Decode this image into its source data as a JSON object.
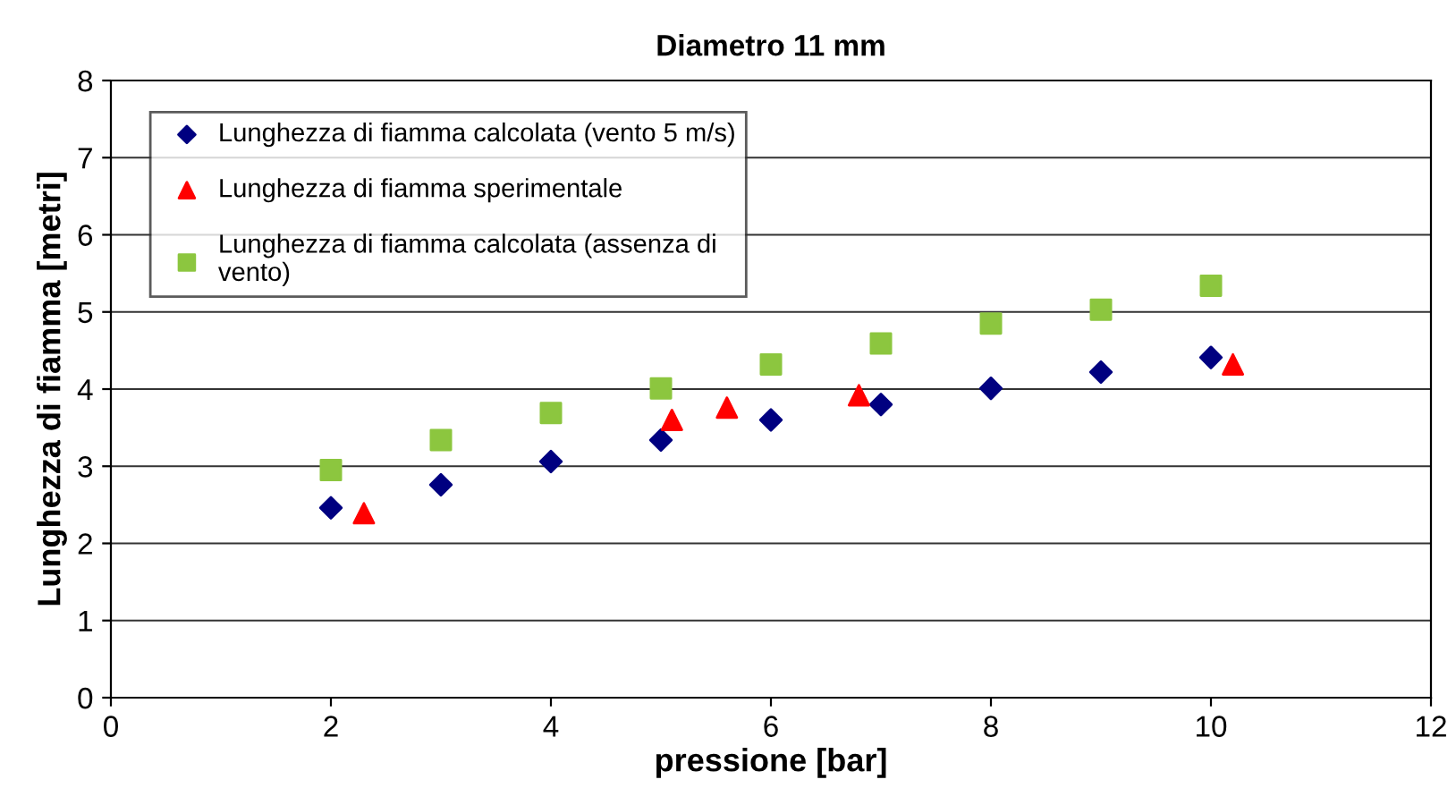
{
  "chart_data": {
    "type": "scatter",
    "title": "Diametro 11 mm",
    "xlabel": "pressione [bar]",
    "ylabel": "Lunghezza di fiamma [metri]",
    "xlim": [
      0,
      12
    ],
    "xticks": [
      0,
      2,
      4,
      6,
      8,
      10,
      12
    ],
    "ylim": [
      0,
      8
    ],
    "yticks": [
      0,
      1,
      2,
      3,
      4,
      5,
      6,
      7,
      8
    ],
    "grid": "y",
    "legend": "top left",
    "series": [
      {
        "name": "Lunghezza di fiamma calcolata (vento 5 m/s)",
        "color": "#000080",
        "marker": "diamond",
        "x": [
          2,
          3,
          4,
          5,
          6,
          7,
          8,
          9,
          10
        ],
        "values": [
          2.46,
          2.76,
          3.06,
          3.34,
          3.6,
          3.8,
          4.01,
          4.22,
          4.41
        ]
      },
      {
        "name": "Lunghezza di fiamma sperimentale",
        "color": "#ff0000",
        "marker": "triangle",
        "x": [
          2.3,
          5.1,
          5.6,
          6.8,
          10.2
        ],
        "values": [
          2.39,
          3.6,
          3.76,
          3.92,
          4.32
        ]
      },
      {
        "name": "Lunghezza di fiamma calcolata (assenza di\nvento)",
        "color": "#8cc63f",
        "marker": "square",
        "x": [
          2,
          3,
          4,
          5,
          6,
          7,
          8,
          9,
          10
        ],
        "values": [
          2.95,
          3.34,
          3.69,
          4.01,
          4.32,
          4.59,
          4.85,
          5.03,
          5.34
        ]
      }
    ]
  }
}
